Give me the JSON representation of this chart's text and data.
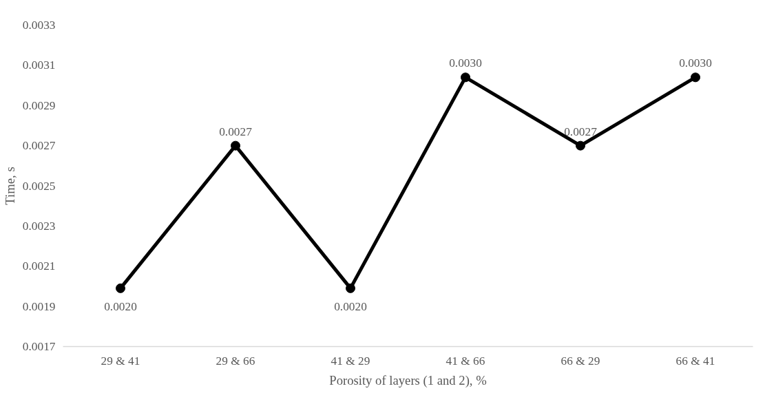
{
  "chart_data": {
    "type": "line",
    "xlabel": "Porosity of layers (1 and 2), %",
    "ylabel": "Time, s",
    "categories": [
      "29 & 41",
      "29 & 66",
      "41 & 29",
      "41 & 66",
      "66 & 29",
      "66 & 41"
    ],
    "series": [
      {
        "color": "#000000",
        "values": [
          0.00199,
          0.0027,
          0.00199,
          0.00304,
          0.0027,
          0.00304
        ],
        "value_labels": [
          "0.0020",
          "0.0027",
          "0.0020",
          "0.0030",
          "0.0027",
          "0.0030"
        ]
      }
    ],
    "ylim": [
      0.0017,
      0.0033
    ],
    "yticks": [
      0.0017,
      0.0019,
      0.0021,
      0.0023,
      0.0025,
      0.0027,
      0.0029,
      0.0031,
      0.0033
    ],
    "grid": false,
    "marker": "circle",
    "line_style": "solid"
  }
}
